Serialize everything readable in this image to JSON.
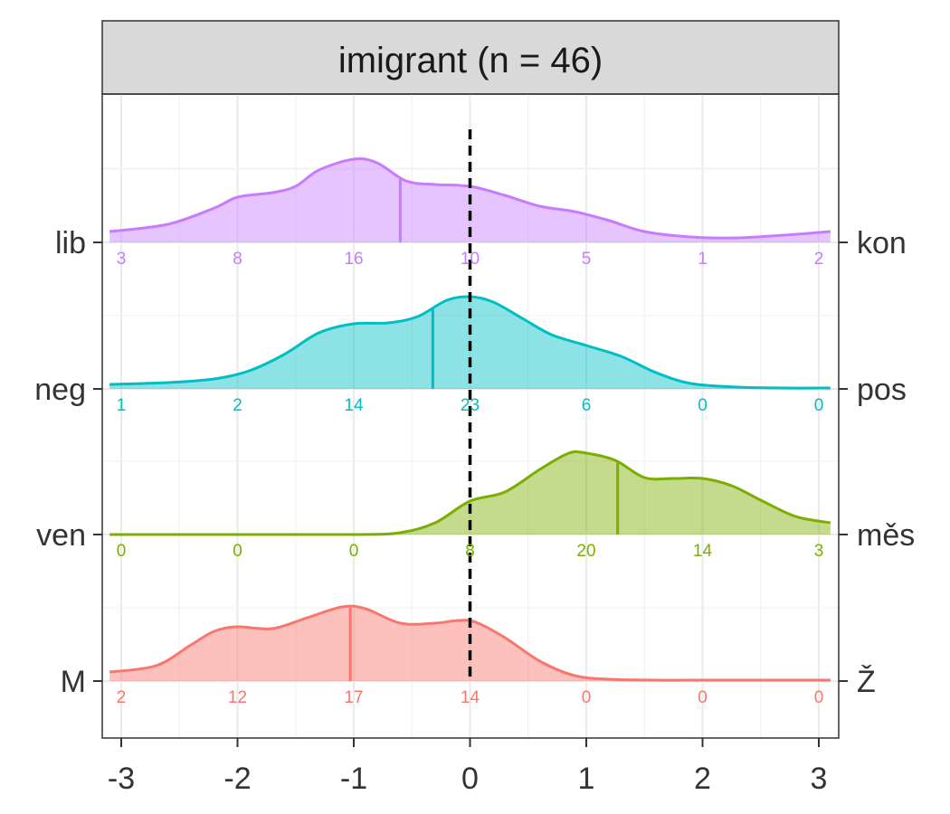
{
  "chart_data": {
    "type": "ridgeline",
    "facet_title": "imigrant (n = 46)",
    "xlim": [
      -3.1,
      3.1
    ],
    "x_ticks": [
      -3,
      -2,
      -1,
      0,
      1,
      2,
      3
    ],
    "x_tick_labels": [
      "-3",
      "-2",
      "-1",
      "0",
      "1",
      "2",
      "3"
    ],
    "reference_line_x": 0,
    "grid": true,
    "bin_positions": [
      -3,
      -2,
      -1,
      0,
      1,
      2,
      3
    ],
    "scales": [
      {
        "id": "lib-kon",
        "left_label": "lib",
        "right_label": "kon",
        "color": "#C77CFF",
        "mean": -0.6,
        "counts": [
          3,
          8,
          16,
          10,
          5,
          1,
          2
        ],
        "density": [
          [
            -3.1,
            0.12
          ],
          [
            -2.6,
            0.2
          ],
          [
            -2.2,
            0.38
          ],
          [
            -2.0,
            0.5
          ],
          [
            -1.7,
            0.55
          ],
          [
            -1.5,
            0.62
          ],
          [
            -1.3,
            0.8
          ],
          [
            -1.0,
            0.92
          ],
          [
            -0.8,
            0.88
          ],
          [
            -0.55,
            0.68
          ],
          [
            -0.3,
            0.64
          ],
          [
            0.0,
            0.62
          ],
          [
            0.3,
            0.52
          ],
          [
            0.6,
            0.4
          ],
          [
            0.9,
            0.34
          ],
          [
            1.2,
            0.24
          ],
          [
            1.5,
            0.12
          ],
          [
            1.9,
            0.06
          ],
          [
            2.3,
            0.05
          ],
          [
            2.7,
            0.08
          ],
          [
            3.1,
            0.12
          ]
        ]
      },
      {
        "id": "neg-pos",
        "left_label": "neg",
        "right_label": "pos",
        "color": "#00BFC4",
        "mean": -0.32,
        "counts": [
          1,
          2,
          14,
          23,
          6,
          0,
          0
        ],
        "density": [
          [
            -3.1,
            0.05
          ],
          [
            -2.6,
            0.07
          ],
          [
            -2.2,
            0.11
          ],
          [
            -1.9,
            0.2
          ],
          [
            -1.6,
            0.38
          ],
          [
            -1.3,
            0.62
          ],
          [
            -1.0,
            0.72
          ],
          [
            -0.7,
            0.73
          ],
          [
            -0.45,
            0.8
          ],
          [
            -0.2,
            0.98
          ],
          [
            0.0,
            1.02
          ],
          [
            0.2,
            0.96
          ],
          [
            0.45,
            0.78
          ],
          [
            0.7,
            0.6
          ],
          [
            1.0,
            0.48
          ],
          [
            1.3,
            0.36
          ],
          [
            1.6,
            0.18
          ],
          [
            1.9,
            0.06
          ],
          [
            2.3,
            0.02
          ],
          [
            2.7,
            0.01
          ],
          [
            3.1,
            0.01
          ]
        ]
      },
      {
        "id": "ven-mes",
        "left_label": "ven",
        "right_label": "měs",
        "color": "#7CAE00",
        "mean": 1.27,
        "counts": [
          0,
          0,
          0,
          8,
          20,
          14,
          3
        ],
        "density": [
          [
            -3.1,
            0.0
          ],
          [
            -2.0,
            0.0
          ],
          [
            -1.0,
            0.0
          ],
          [
            -0.6,
            0.02
          ],
          [
            -0.3,
            0.13
          ],
          [
            0.0,
            0.37
          ],
          [
            0.3,
            0.47
          ],
          [
            0.6,
            0.72
          ],
          [
            0.85,
            0.9
          ],
          [
            1.0,
            0.9
          ],
          [
            1.25,
            0.82
          ],
          [
            1.5,
            0.63
          ],
          [
            1.75,
            0.62
          ],
          [
            2.0,
            0.62
          ],
          [
            2.25,
            0.54
          ],
          [
            2.5,
            0.38
          ],
          [
            2.8,
            0.2
          ],
          [
            3.1,
            0.13
          ]
        ]
      },
      {
        "id": "M-Z",
        "left_label": "M",
        "right_label": "Ž",
        "color": "#F8766D",
        "mean": -1.03,
        "counts": [
          2,
          12,
          17,
          14,
          0,
          0,
          0
        ],
        "density": [
          [
            -3.1,
            0.1
          ],
          [
            -2.7,
            0.17
          ],
          [
            -2.4,
            0.4
          ],
          [
            -2.2,
            0.55
          ],
          [
            -2.0,
            0.6
          ],
          [
            -1.7,
            0.58
          ],
          [
            -1.4,
            0.7
          ],
          [
            -1.1,
            0.82
          ],
          [
            -0.9,
            0.8
          ],
          [
            -0.6,
            0.64
          ],
          [
            -0.3,
            0.64
          ],
          [
            -0.1,
            0.67
          ],
          [
            0.05,
            0.65
          ],
          [
            0.3,
            0.48
          ],
          [
            0.6,
            0.22
          ],
          [
            0.9,
            0.06
          ],
          [
            1.2,
            0.02
          ],
          [
            1.6,
            0.01
          ],
          [
            2.0,
            0.01
          ],
          [
            2.5,
            0.01
          ],
          [
            3.1,
            0.01
          ]
        ]
      }
    ]
  }
}
